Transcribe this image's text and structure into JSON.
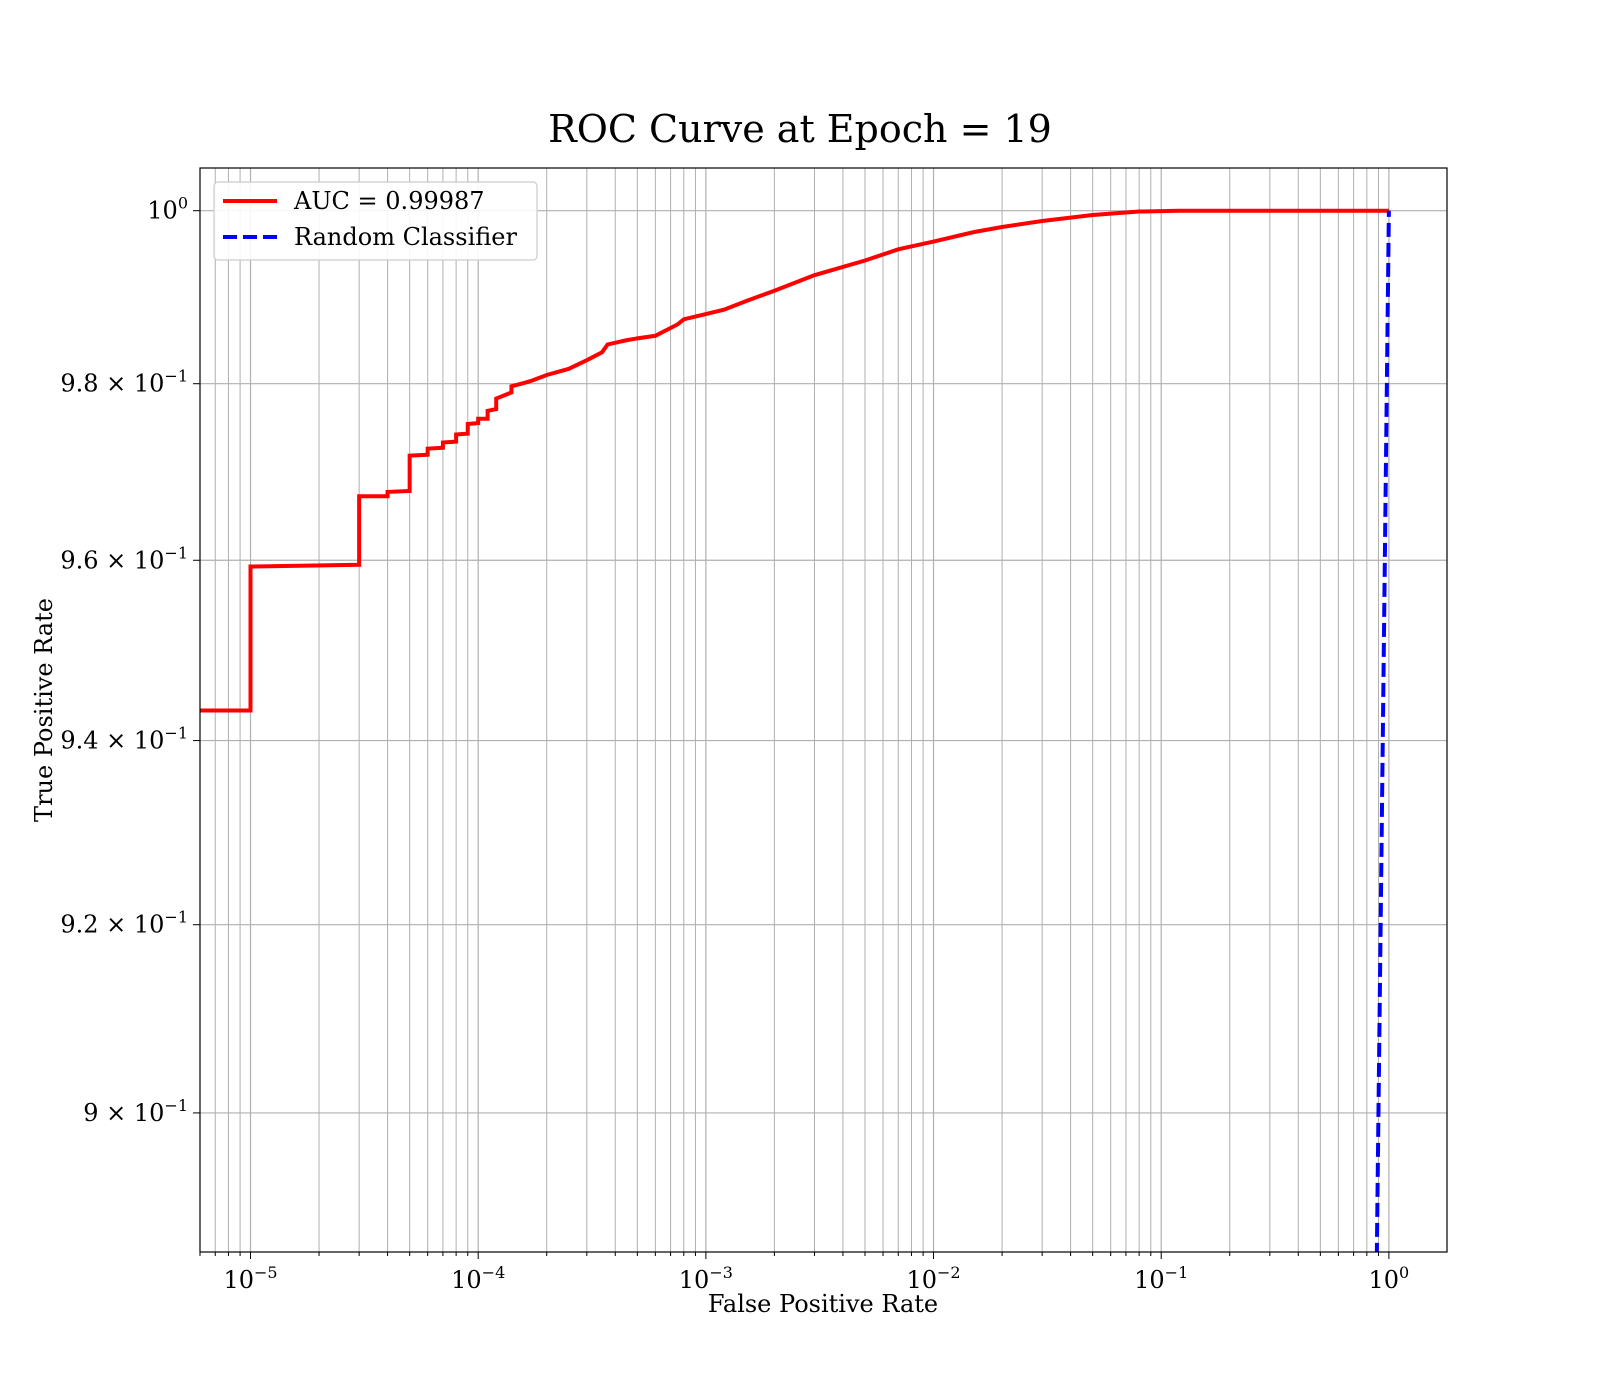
{
  "chart_data": {
    "type": "line",
    "title": "ROC Curve at Epoch = 19",
    "xlabel": "False Positive Rate",
    "ylabel": "True Positive Rate",
    "xscale": "log",
    "yscale": "log",
    "xlim": [
      6e-06,
      1.8
    ],
    "ylim": [
      0.8855,
      1.005
    ],
    "grid": "major and minor",
    "legend_position": "upper-left",
    "x_ticks": [
      {
        "value": 1e-05,
        "base": "10",
        "exp": "−5"
      },
      {
        "value": 0.0001,
        "base": "10",
        "exp": "−4"
      },
      {
        "value": 0.001,
        "base": "10",
        "exp": "−3"
      },
      {
        "value": 0.01,
        "base": "10",
        "exp": "−2"
      },
      {
        "value": 0.1,
        "base": "10",
        "exp": "−1"
      },
      {
        "value": 1,
        "base": "10",
        "exp": "0"
      }
    ],
    "y_ticks": [
      {
        "value": 0.9,
        "base": "9 × 10",
        "exp": "−1"
      },
      {
        "value": 0.92,
        "base": "9.2 × 10",
        "exp": "−1"
      },
      {
        "value": 0.94,
        "base": "9.4 × 10",
        "exp": "−1"
      },
      {
        "value": 0.96,
        "base": "9.6 × 10",
        "exp": "−1"
      },
      {
        "value": 0.98,
        "base": "9.8 × 10",
        "exp": "−1"
      },
      {
        "value": 1,
        "base": "10",
        "exp": "0"
      }
    ],
    "series": [
      {
        "name": "AUC = 0.99987",
        "color": "#ff0000",
        "style": "solid",
        "points": [
          [
            6e-06,
            0.9433
          ],
          [
            1e-05,
            0.9433
          ],
          [
            1e-05,
            0.9593
          ],
          [
            3e-05,
            0.9595
          ],
          [
            3e-05,
            0.9672
          ],
          [
            4e-05,
            0.9672
          ],
          [
            4e-05,
            0.9677
          ],
          [
            5e-05,
            0.9678
          ],
          [
            5e-05,
            0.9718
          ],
          [
            6e-05,
            0.9719
          ],
          [
            6e-05,
            0.9726
          ],
          [
            7e-05,
            0.9727
          ],
          [
            7e-05,
            0.9733
          ],
          [
            8e-05,
            0.9734
          ],
          [
            8e-05,
            0.9742
          ],
          [
            9e-05,
            0.9743
          ],
          [
            9e-05,
            0.9754
          ],
          [
            0.0001,
            0.9755
          ],
          [
            0.0001,
            0.976
          ],
          [
            0.00011,
            0.976
          ],
          [
            0.00011,
            0.9769
          ],
          [
            0.00012,
            0.9771
          ],
          [
            0.00012,
            0.9783
          ],
          [
            0.00014,
            0.979
          ],
          [
            0.00014,
            0.9797
          ],
          [
            0.00016,
            0.9801
          ],
          [
            0.00017,
            0.9803
          ],
          [
            0.0002,
            0.981
          ],
          [
            0.00025,
            0.9817
          ],
          [
            0.0003,
            0.9827
          ],
          [
            0.00035,
            0.9836
          ],
          [
            0.00037,
            0.9845
          ],
          [
            0.00045,
            0.985
          ],
          [
            0.0005,
            0.9852
          ],
          [
            0.0006,
            0.9855
          ],
          [
            0.00075,
            0.9868
          ],
          [
            0.0008,
            0.9874
          ],
          [
            0.001,
            0.988
          ],
          [
            0.0012,
            0.9885
          ],
          [
            0.0015,
            0.9895
          ],
          [
            0.002,
            0.9907
          ],
          [
            0.003,
            0.9925
          ],
          [
            0.005,
            0.9942
          ],
          [
            0.007,
            0.9955
          ],
          [
            0.01,
            0.9964
          ],
          [
            0.015,
            0.9975
          ],
          [
            0.02,
            0.9981
          ],
          [
            0.03,
            0.9988
          ],
          [
            0.05,
            0.9995
          ],
          [
            0.08,
            0.9999
          ],
          [
            0.12,
            1.0
          ],
          [
            0.3,
            1.0
          ],
          [
            1.0,
            1.0
          ]
        ]
      },
      {
        "name": "Random Classifier",
        "color": "#0000ff",
        "style": "dashed",
        "points": [
          [
            0.885,
            0.885
          ],
          [
            0.9,
            0.9
          ],
          [
            0.92,
            0.92
          ],
          [
            0.94,
            0.94
          ],
          [
            0.96,
            0.96
          ],
          [
            0.98,
            0.98
          ],
          [
            1.0,
            1.0
          ]
        ]
      }
    ]
  }
}
